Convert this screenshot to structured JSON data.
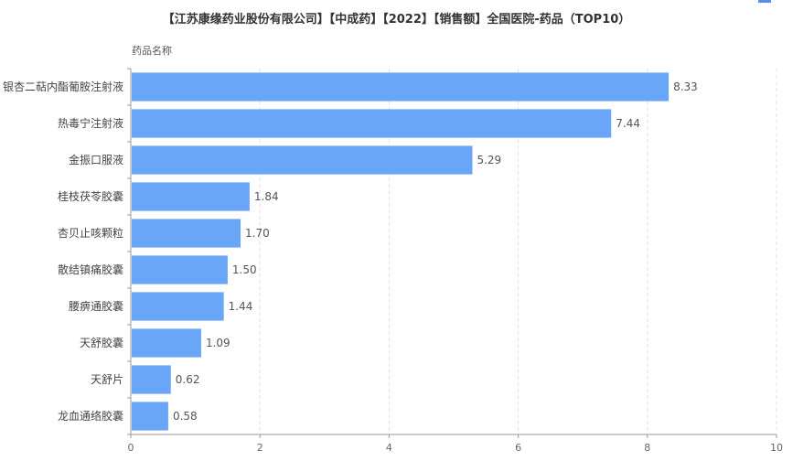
{
  "chart_data": {
    "type": "bar",
    "orientation": "horizontal",
    "title": "【江苏康缘药业股份有限公司】【中成药】【2022】【销售额】全国医院-药品（TOP10）",
    "ylabel": "药品名称",
    "xlabel": "",
    "categories": [
      "银杏二萜内酯葡胺注射液",
      "热毒宁注射液",
      "金振口服液",
      "桂枝茯苓胶囊",
      "杏贝止咳颗粒",
      "散结镇痛胶囊",
      "腰痹通胶囊",
      "天舒胶囊",
      "天舒片",
      "龙血通络胶囊"
    ],
    "values": [
      8.33,
      7.44,
      5.29,
      1.84,
      1.7,
      1.5,
      1.44,
      1.09,
      0.62,
      0.58
    ],
    "value_labels": [
      "8.33",
      "7.44",
      "5.29",
      "1.84",
      "1.70",
      "1.50",
      "1.44",
      "1.09",
      "0.62",
      "0.58"
    ],
    "xlim": [
      0,
      10
    ],
    "xticks": [
      "0",
      "2",
      "4",
      "6",
      "8",
      "10"
    ],
    "grid": true,
    "bar_color": "#6aa6f8"
  }
}
